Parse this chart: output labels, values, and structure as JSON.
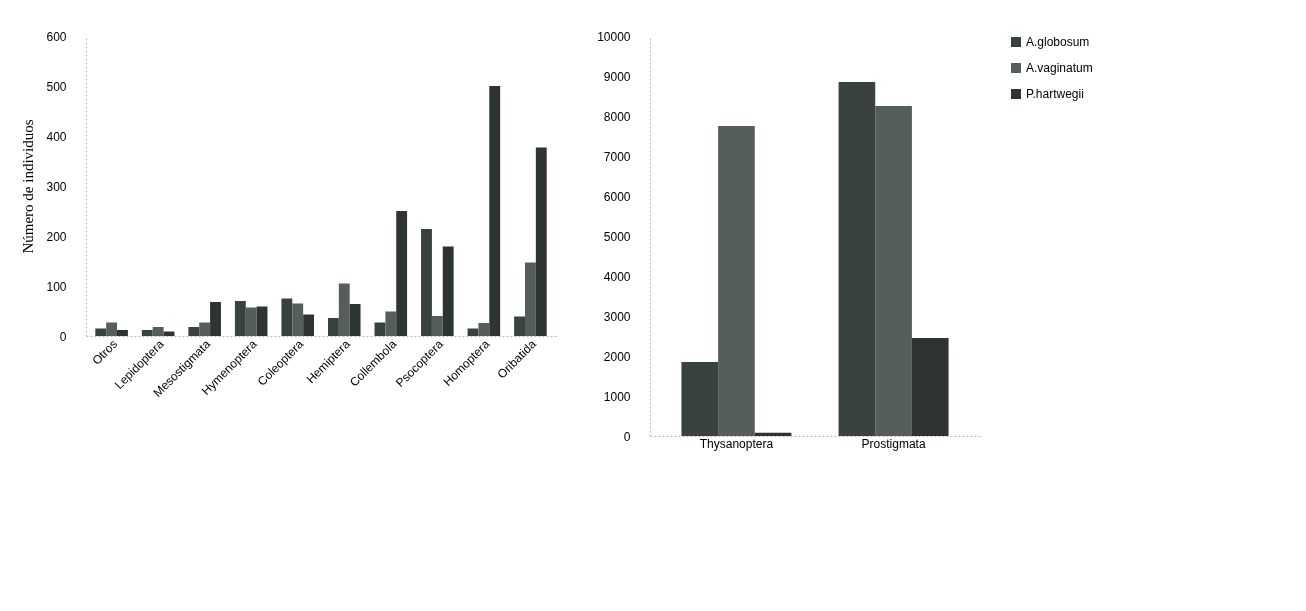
{
  "chart_data": [
    {
      "type": "bar",
      "ylabel": "Número de individuos",
      "categories": [
        "Otros",
        "Lepidoptera",
        "Mesostigmata",
        "Hymenoptera",
        "Coleoptera",
        "Hemiptera",
        "Collembola",
        "Psocoptera",
        "Homoptera",
        "Oribatida"
      ],
      "series": [
        {
          "color": "#3a423d",
          "values": [
            15,
            12,
            18,
            70,
            75,
            36,
            27,
            214,
            15,
            39
          ]
        },
        {
          "color": "#565e59",
          "values": [
            27,
            18,
            27,
            57,
            65,
            105,
            49,
            40,
            26,
            147
          ]
        },
        {
          "color": "#2e3531",
          "values": [
            12,
            9,
            68,
            59,
            43,
            64,
            250,
            179,
            500,
            377
          ]
        }
      ],
      "ylim": [
        0,
        600
      ],
      "yticks": [
        0,
        100,
        200,
        300,
        400,
        500,
        600
      ],
      "grid": false,
      "legend": false
    },
    {
      "type": "bar",
      "categories": [
        "Thysanoptera",
        "Prostigmata"
      ],
      "series": [
        {
          "name": "A.globosum",
          "color": "#3a423d",
          "values": [
            1850,
            8850
          ]
        },
        {
          "name": "A.vaginatum",
          "color": "#565e59",
          "values": [
            7750,
            8250
          ]
        },
        {
          "name": "P.hartwegii",
          "color": "#2e3531",
          "values": [
            80,
            2450
          ]
        }
      ],
      "ylim": [
        0,
        10000
      ],
      "yticks": [
        0,
        1000,
        2000,
        3000,
        4000,
        5000,
        6000,
        7000,
        8000,
        9000,
        10000
      ],
      "grid": false,
      "legend": "right"
    }
  ]
}
